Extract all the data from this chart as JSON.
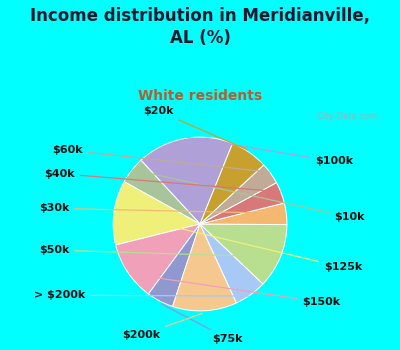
{
  "title": "Income distribution in Meridianville,\nAL (%)",
  "subtitle": "White residents",
  "bg_cyan": "#00FFFF",
  "bg_chart": "#ddeee8",
  "title_color": "#1a1a2e",
  "subtitle_color": "#b06030",
  "watermark": "  City-Data.com",
  "labels": [
    "$100k",
    "$10k",
    "$125k",
    "$150k",
    "$75k",
    "$200k",
    "> $200k",
    "$50k",
    "$30k",
    "$40k",
    "$60k",
    "$20k"
  ],
  "values": [
    18,
    5,
    12,
    11,
    5,
    12,
    6,
    12,
    4,
    4,
    4,
    7
  ],
  "colors": [
    "#b0a0d8",
    "#a8c49a",
    "#eef07a",
    "#f0a0b8",
    "#9098d0",
    "#f5c890",
    "#a8c8f5",
    "#b8df90",
    "#f5b870",
    "#d87878",
    "#c0aa98",
    "#c8a030"
  ],
  "startangle": 68,
  "label_fontsize": 8,
  "title_fontsize": 12,
  "subtitle_fontsize": 10
}
